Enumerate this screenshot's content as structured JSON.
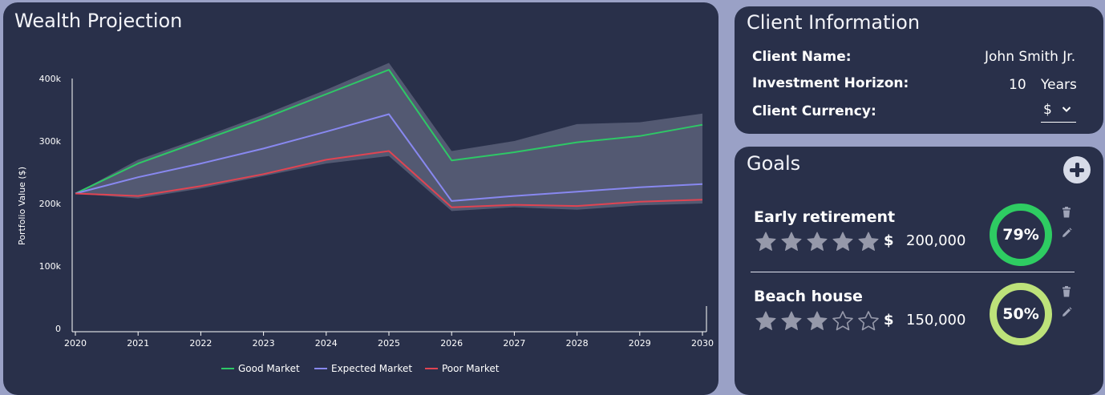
{
  "chart_panel": {
    "title": "Wealth Projection"
  },
  "chart_data": {
    "type": "line",
    "x": [
      2020,
      2021,
      2022,
      2023,
      2024,
      2025,
      2026,
      2027,
      2028,
      2029,
      2030
    ],
    "ylabel": "Portfolio Value ($)",
    "xlabel": "",
    "ylim": [
      0,
      400000
    ],
    "y_ticks": [
      {
        "value": 0,
        "label": "0"
      },
      {
        "value": 100000,
        "label": "100k"
      },
      {
        "value": 200000,
        "label": "200k"
      },
      {
        "value": 300000,
        "label": "300k"
      },
      {
        "value": 400000,
        "label": "400k"
      }
    ],
    "x_tick_labels": [
      "2020",
      "2021",
      "2022",
      "2023",
      "2024",
      "2025",
      "2026",
      "2027",
      "2028",
      "2029",
      "2030"
    ],
    "series": [
      {
        "name": "Good Market",
        "color": "#2ec866",
        "values": [
          216000,
          264000,
          300000,
          336000,
          375000,
          414000,
          269000,
          282000,
          298000,
          308000,
          326000
        ]
      },
      {
        "name": "Expected Market",
        "color": "#8888f0",
        "values": [
          216000,
          242000,
          264000,
          288000,
          315000,
          343000,
          204000,
          212000,
          219000,
          226000,
          231000
        ]
      },
      {
        "name": "Poor Market",
        "color": "#e04452",
        "values": [
          216000,
          212000,
          228000,
          247000,
          270000,
          284000,
          194000,
          198000,
          196000,
          203000,
          206000
        ]
      }
    ],
    "band": {
      "color": "#5b6079",
      "upper": [
        216000,
        270000,
        305000,
        342000,
        382000,
        425000,
        284000,
        300000,
        327000,
        330000,
        344000
      ],
      "lower": [
        216000,
        208000,
        224000,
        244000,
        264000,
        276000,
        188000,
        194000,
        190000,
        197000,
        200000
      ]
    },
    "legend_position": "bottom-center"
  },
  "client_info": {
    "title": "Client Information",
    "name_label": "Client Name:",
    "name_value": "John Smith Jr.",
    "horizon_label": "Investment Horizon:",
    "horizon_value": "10",
    "horizon_unit": "Years",
    "currency_label": "Client Currency:",
    "currency_value": "$",
    "chevron_icon": "chevron-down-icon"
  },
  "goals": {
    "title": "Goals",
    "add_icon": "plus-circle-icon",
    "items": [
      {
        "name": "Early retirement",
        "stars": 5,
        "stars_max": 5,
        "currency": "$",
        "amount": "200,000",
        "progress": 79,
        "progress_label": "79%",
        "ring_color": "#2ecc62"
      },
      {
        "name": "Beach house",
        "stars": 3,
        "stars_max": 5,
        "currency": "$",
        "amount": "150,000",
        "progress": 50,
        "progress_label": "50%",
        "ring_color": "#bde27a"
      }
    ],
    "delete_icon": "trash-icon",
    "edit_icon": "pencil-icon"
  },
  "colors": {
    "background": "#9aa1c6",
    "panel": "#29304a",
    "star_filled": "#9699aa"
  }
}
